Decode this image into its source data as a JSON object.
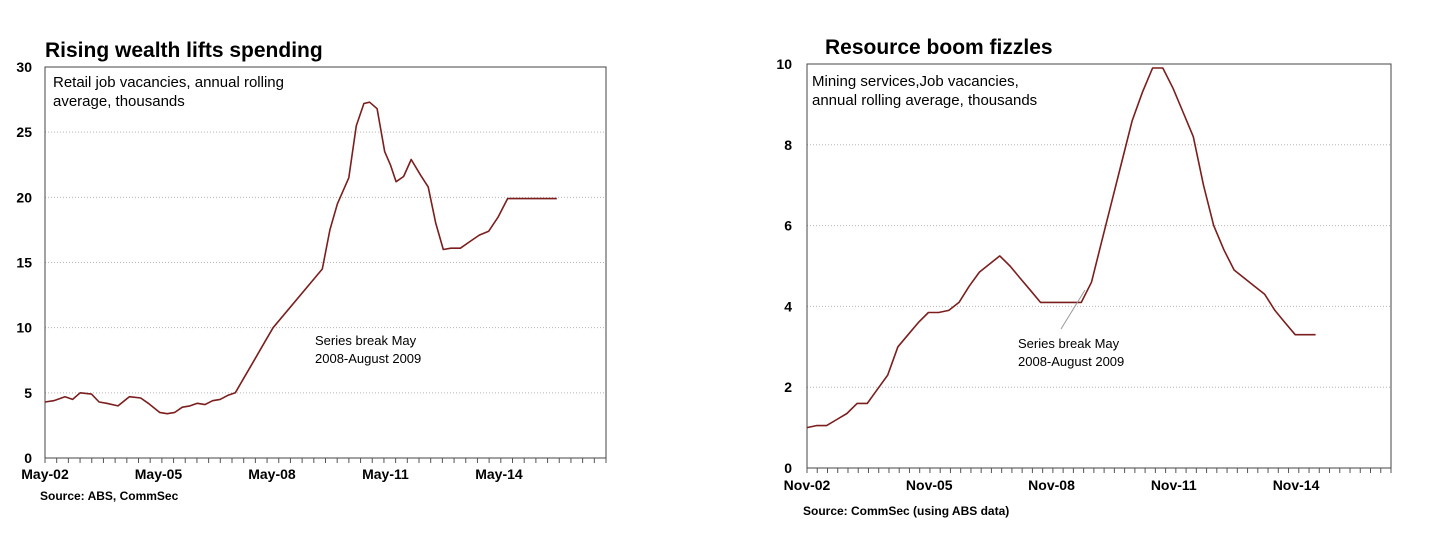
{
  "chart_data": [
    {
      "type": "line",
      "title": "Rising wealth lifts  spending",
      "description_lines": [
        "Retail job vacancies,  annual rolling",
        "average, thousands"
      ],
      "xlabel": "",
      "ylabel": "",
      "ylim": [
        0,
        30
      ],
      "y_ticks": [
        0,
        5,
        10,
        15,
        20,
        25,
        30
      ],
      "x_tick_labels": [
        "May-02",
        "May-05",
        "May-08",
        "May-11",
        "May-14"
      ],
      "x_ticks": [
        2002.37,
        2005.37,
        2008.37,
        2011.37,
        2014.37
      ],
      "xlim": [
        2002.37,
        2017.2
      ],
      "grid": true,
      "annotation_lines": [
        "Series break May",
        "2008-August 2009"
      ],
      "source": "Source: ABS, CommSec",
      "series": [
        {
          "color": "#7b1e1e",
          "x": [
            2002.37,
            2002.6,
            2002.9,
            2003.1,
            2003.3,
            2003.6,
            2003.8,
            2004.0,
            2004.3,
            2004.6,
            2004.9,
            2005.1,
            2005.4,
            2005.6,
            2005.8,
            2006.0,
            2006.2,
            2006.4,
            2006.6,
            2006.8,
            2007.0,
            2007.2,
            2007.4,
            2007.6,
            2007.8,
            2008.0,
            2008.2,
            2008.4,
            2009.7,
            2009.9,
            2010.1,
            2010.4,
            2010.6,
            2010.8,
            2010.95,
            2011.15,
            2011.35,
            2011.5,
            2011.65,
            2011.85,
            2012.05,
            2012.3,
            2012.5,
            2012.7,
            2012.9,
            2013.1,
            2013.35,
            2013.6,
            2013.85,
            2014.1,
            2014.35,
            2014.6,
            2014.85,
            2015.1,
            2015.35,
            2015.6,
            2015.9
          ],
          "values": [
            4.3,
            4.4,
            4.7,
            4.5,
            5.0,
            4.9,
            4.3,
            4.2,
            4.0,
            4.7,
            4.6,
            4.2,
            3.5,
            3.4,
            3.5,
            3.9,
            4.0,
            4.2,
            4.1,
            4.4,
            4.5,
            4.8,
            5.0,
            6.0,
            7.0,
            8.0,
            9.0,
            10.0,
            14.5,
            17.5,
            19.5,
            21.5,
            25.5,
            27.2,
            27.3,
            26.8,
            23.5,
            22.5,
            21.2,
            21.6,
            22.9,
            21.7,
            20.8,
            18.0,
            16.0,
            16.1,
            16.1,
            16.6,
            17.1,
            17.4,
            18.5,
            19.9,
            19.9,
            19.9,
            19.9,
            19.9,
            19.9
          ]
        }
      ]
    },
    {
      "type": "line",
      "title": "Resource boom fizzles",
      "description_lines": [
        "Mining services,Job vacancies,",
        "annual rolling average, thousands"
      ],
      "xlabel": "",
      "ylabel": "",
      "ylim": [
        0,
        10
      ],
      "y_ticks": [
        0,
        2,
        4,
        6,
        8,
        10
      ],
      "x_tick_labels": [
        "Nov-02",
        "Nov-05",
        "Nov-08",
        "Nov-11",
        "Nov-14"
      ],
      "x_ticks": [
        2002.87,
        2005.87,
        2008.87,
        2011.87,
        2014.87
      ],
      "xlim": [
        2002.87,
        2017.2
      ],
      "grid": true,
      "annotation_lines": [
        "Series break May",
        "2008-August 2009"
      ],
      "source": "Source: CommSec (using ABS data)",
      "series": [
        {
          "color": "#7b1e1e",
          "x": [
            2002.87,
            2003.1,
            2003.35,
            2003.6,
            2003.85,
            2004.1,
            2004.35,
            2004.6,
            2004.85,
            2005.1,
            2005.35,
            2005.6,
            2005.85,
            2006.1,
            2006.35,
            2006.6,
            2006.85,
            2007.1,
            2007.35,
            2007.6,
            2007.85,
            2008.1,
            2008.35,
            2008.6,
            2009.6,
            2009.85,
            2010.1,
            2010.35,
            2010.6,
            2010.85,
            2011.1,
            2011.35,
            2011.6,
            2011.85,
            2012.1,
            2012.35,
            2012.6,
            2012.85,
            2013.1,
            2013.35,
            2013.6,
            2013.85,
            2014.1,
            2014.35,
            2014.6,
            2014.85,
            2015.1,
            2015.35
          ],
          "values": [
            1.0,
            1.05,
            1.05,
            1.2,
            1.35,
            1.6,
            1.6,
            1.95,
            2.3,
            3.0,
            3.3,
            3.6,
            3.85,
            3.85,
            3.9,
            4.1,
            4.5,
            4.85,
            5.05,
            5.25,
            5.0,
            4.7,
            4.4,
            4.1,
            4.1,
            4.6,
            5.6,
            6.6,
            7.6,
            8.6,
            9.3,
            9.9,
            9.9,
            9.4,
            8.8,
            8.2,
            7.0,
            6.0,
            5.4,
            4.9,
            4.7,
            4.5,
            4.3,
            3.9,
            3.6,
            3.3,
            3.3,
            3.3
          ]
        }
      ]
    }
  ]
}
